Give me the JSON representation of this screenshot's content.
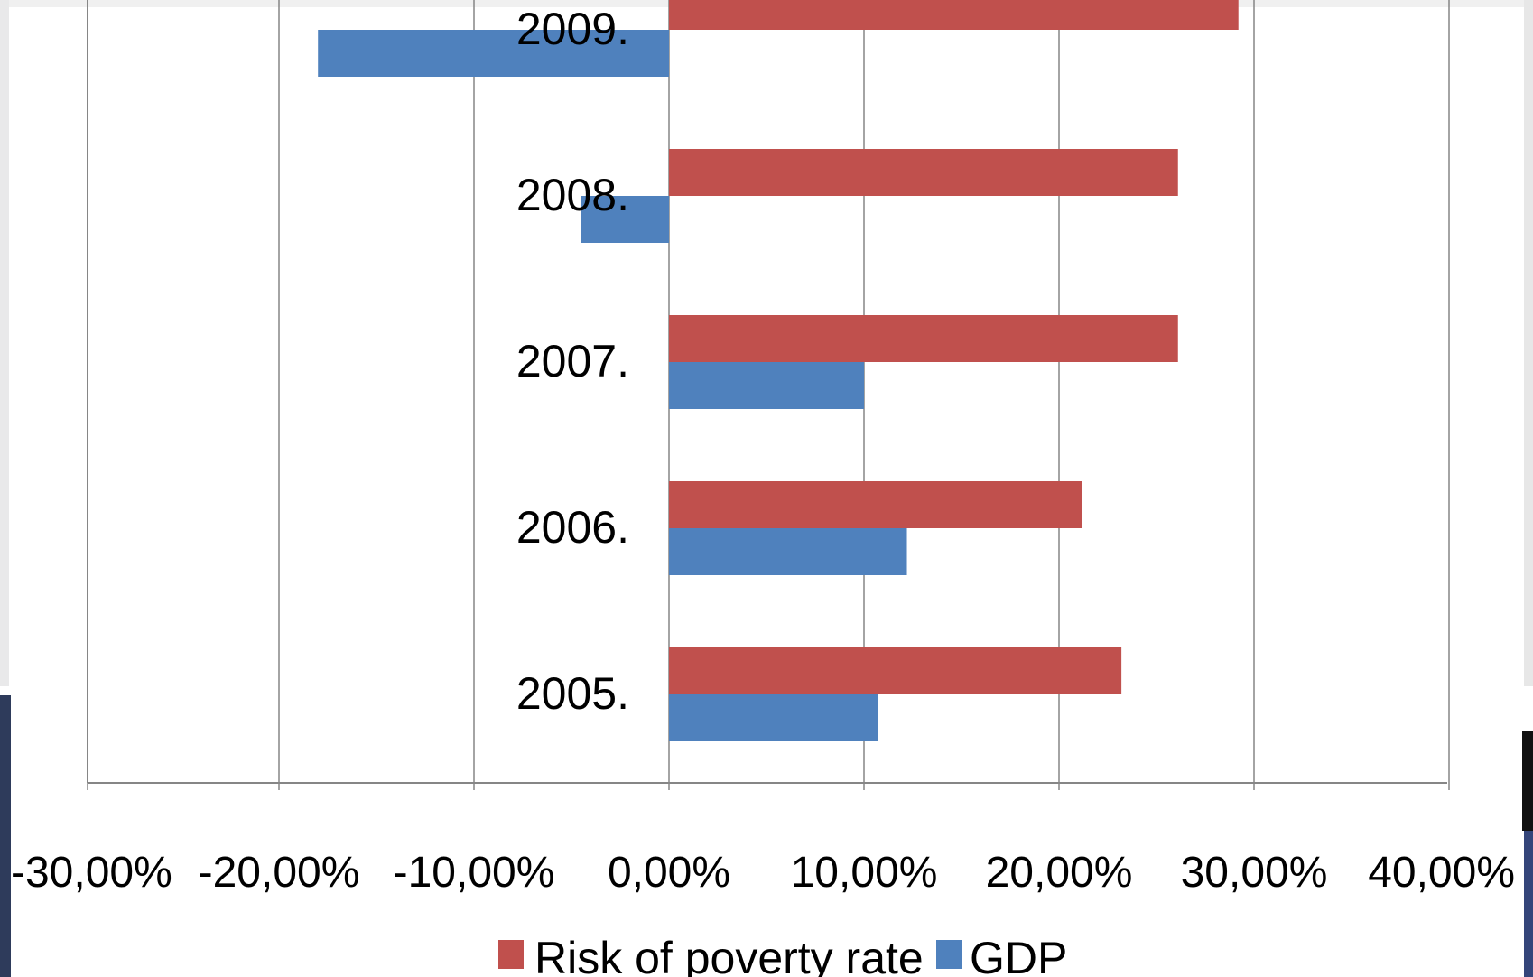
{
  "chart_data": {
    "type": "bar",
    "orientation": "horizontal",
    "title": "",
    "xlabel": "",
    "ylabel": "",
    "categories": [
      "2005.",
      "2006.",
      "2007.",
      "2008.",
      "2009."
    ],
    "series": [
      {
        "name": "Risk of poverty rate",
        "color": "#c0504d",
        "values": [
          23.2,
          21.2,
          26.1,
          26.1,
          29.2
        ]
      },
      {
        "name": "GDP",
        "color": "#4f81bd",
        "values": [
          10.7,
          12.2,
          10.0,
          -4.5,
          -18.0
        ]
      }
    ],
    "x_ticks": [
      "-30,00%",
      "-20,00%",
      "-10,00%",
      "0,00%",
      "10,00%",
      "20,00%",
      "30,00%",
      "40,00%"
    ],
    "xlim": [
      -30,
      40
    ],
    "grid": "vertical",
    "legend": "bottom"
  }
}
